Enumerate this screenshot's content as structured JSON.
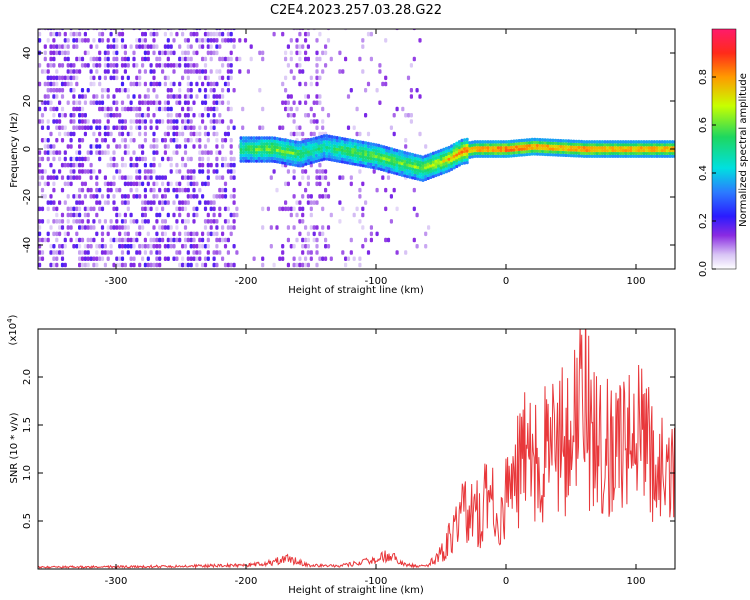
{
  "title": "C2E4.2023.257.03.28.G22",
  "chart_data": [
    {
      "type": "heatmap",
      "xlabel": "Height of straight line (km)",
      "ylabel": "Frequency (Hz)",
      "xlim": [
        -360,
        130
      ],
      "ylim": [
        -50,
        50
      ],
      "xticks": [
        -300,
        -200,
        -100,
        0,
        100
      ],
      "yticks": [
        -40,
        -20,
        0,
        20,
        40
      ],
      "colorbar": {
        "label": "Normalized spectral amplitude",
        "range": [
          0.0,
          1.0
        ],
        "ticks": [
          "0.0",
          "0.2",
          "0.4",
          "0.6",
          "0.8"
        ]
      },
      "ridge": {
        "x": [
          -205,
          -180,
          -160,
          -140,
          -120,
          -100,
          -80,
          -65,
          -55,
          -45,
          -35,
          -25,
          -10,
          0,
          20,
          40,
          60,
          80,
          100,
          120
        ],
        "y": [
          0,
          0,
          -2,
          1,
          -1,
          -3,
          -6,
          -8,
          -6,
          -4,
          -1,
          0,
          0,
          0,
          1,
          0.5,
          0,
          0,
          0,
          0
        ],
        "amplitude": [
          0.45,
          0.55,
          0.45,
          0.35,
          0.5,
          0.5,
          0.5,
          0.55,
          0.6,
          0.7,
          0.8,
          0.9,
          0.95,
          1.0,
          0.95,
          0.9,
          0.95,
          0.9,
          0.92,
          0.9
        ]
      }
    },
    {
      "type": "line",
      "xlabel": "Height of straight line (km)",
      "ylabel": "SNR (10 * v/v)",
      "yunit": "(x10",
      "yunit_exp": "4",
      "xlim": [
        -360,
        130
      ],
      "ylim": [
        0,
        25000
      ],
      "xticks": [
        -300,
        -200,
        -100,
        0,
        100
      ],
      "yticks": [
        "0.5",
        "1.0",
        "1.5",
        "2.0"
      ],
      "series": [
        {
          "color": "#e8383b",
          "x": [
            -360,
            -250,
            -200,
            -180,
            -170,
            -160,
            -150,
            -130,
            -110,
            -100,
            -90,
            -80,
            -70,
            -60,
            -50,
            -45,
            -40,
            -35,
            -30,
            -25,
            -20,
            -15,
            -10,
            -5,
            0,
            5,
            10,
            15,
            20,
            25,
            30,
            35,
            40,
            45,
            50,
            55,
            60,
            65,
            70,
            75,
            80,
            90,
            100,
            110,
            120,
            130
          ],
          "y": [
            200,
            300,
            400,
            700,
            1200,
            800,
            400,
            300,
            700,
            1100,
            1500,
            700,
            300,
            400,
            2000,
            3500,
            5000,
            7500,
            8000,
            9000,
            7000,
            10000,
            9500,
            4000,
            12000,
            11000,
            14000,
            15000,
            16000,
            13000,
            16500,
            15000,
            18000,
            17000,
            20000,
            22000,
            25000,
            19000,
            20000,
            16000,
            18000,
            17000,
            18500,
            16000,
            14000,
            13000
          ]
        }
      ]
    }
  ],
  "colors": {
    "signal": "#e8383b",
    "axis": "#000000"
  }
}
